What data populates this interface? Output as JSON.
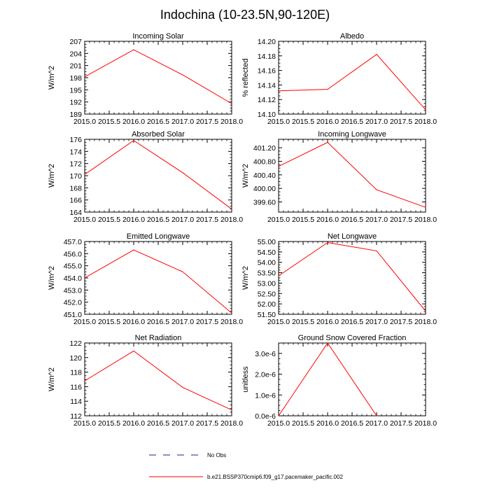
{
  "title": "Indochina (10-23.5N,90-120E)",
  "line_color": "#ff0000",
  "obs_color": "#1e1e8c",
  "legend": {
    "obs_label": "No Obs",
    "model_label": "b.e21.BSSP370cmip6.f09_g17.pacemaker_pacific.002"
  },
  "chart_data": [
    {
      "type": "line",
      "title": "Incoming Solar",
      "ylabel": "W/m^2",
      "x": [
        2016.0,
        2017.0,
        2018.0
      ],
      "y": [
        204.9,
        198.7,
        191.6
      ],
      "xlim": [
        2015.0,
        2018.0
      ],
      "ylim": [
        189,
        207
      ],
      "xticks": [
        2015.0,
        2015.5,
        2016.0,
        2016.5,
        2017.0,
        2017.5,
        2018.0
      ],
      "xtick_labels": [
        "2015.0",
        "2015.5",
        "2016.0",
        "2016.5",
        "2017.0",
        "2017.5",
        "2018.0"
      ],
      "yticks": [
        189,
        192,
        195,
        198,
        201,
        204,
        207
      ],
      "ytick_labels": [
        "189",
        "192",
        "195",
        "198",
        "201",
        "204",
        "207"
      ],
      "y_start_at_axis": 198.2
    },
    {
      "type": "line",
      "title": "Albedo",
      "ylabel": "% reflected",
      "x": [
        2016.0,
        2017.0,
        2018.0
      ],
      "y": [
        14.134,
        14.182,
        14.106
      ],
      "xlim": [
        2015.0,
        2018.0
      ],
      "ylim": [
        14.1,
        14.2
      ],
      "xticks": [
        2015.0,
        2015.5,
        2016.0,
        2016.5,
        2017.0,
        2017.5,
        2018.0
      ],
      "xtick_labels": [
        "2015.0",
        "2015.5",
        "2016.0",
        "2016.5",
        "2017.0",
        "2017.5",
        "2018.0"
      ],
      "yticks": [
        14.1,
        14.12,
        14.14,
        14.16,
        14.18,
        14.2
      ],
      "ytick_labels": [
        "14.10",
        "14.12",
        "14.14",
        "14.16",
        "14.18",
        "14.20"
      ],
      "y_start_at_axis": 14.132
    },
    {
      "type": "line",
      "title": "Absorbed Solar",
      "ylabel": "W/m^2",
      "x": [
        2016.0,
        2017.0,
        2018.0
      ],
      "y": [
        175.8,
        170.5,
        164.5
      ],
      "xlim": [
        2015.0,
        2018.0
      ],
      "ylim": [
        164,
        176
      ],
      "xticks": [
        2015.0,
        2015.5,
        2016.0,
        2016.5,
        2017.0,
        2017.5,
        2018.0
      ],
      "xtick_labels": [
        "2015.0",
        "2015.5",
        "2016.0",
        "2016.5",
        "2017.0",
        "2017.5",
        "2018.0"
      ],
      "yticks": [
        164,
        166,
        168,
        170,
        172,
        174,
        176
      ],
      "ytick_labels": [
        "164",
        "166",
        "168",
        "170",
        "172",
        "174",
        "176"
      ],
      "y_start_at_axis": 170.2
    },
    {
      "type": "line",
      "title": "Incoming Longwave",
      "ylabel": "W/m^2",
      "x": [
        2016.0,
        2017.0,
        2018.0
      ],
      "y": [
        401.36,
        399.96,
        399.44
      ],
      "xlim": [
        2015.0,
        2018.0
      ],
      "ylim": [
        399.3,
        401.45
      ],
      "xticks": [
        2015.0,
        2015.5,
        2016.0,
        2016.5,
        2017.0,
        2017.5,
        2018.0
      ],
      "xtick_labels": [
        "2015.0",
        "2015.5",
        "2016.0",
        "2016.5",
        "2017.0",
        "2017.5",
        "2018.0"
      ],
      "yticks": [
        399.6,
        400.0,
        400.4,
        400.8,
        401.2
      ],
      "ytick_labels": [
        "399.60",
        "400.00",
        "400.40",
        "400.80",
        "401.20"
      ],
      "y_start_at_axis": 400.65
    },
    {
      "type": "line",
      "title": "Emitted Longwave",
      "ylabel": "W/m^2",
      "x": [
        2016.0,
        2017.0,
        2018.0
      ],
      "y": [
        456.3,
        454.5,
        451.1
      ],
      "xlim": [
        2015.0,
        2018.0
      ],
      "ylim": [
        451.0,
        457.0
      ],
      "xticks": [
        2015.0,
        2015.5,
        2016.0,
        2016.5,
        2017.0,
        2017.5,
        2018.0
      ],
      "xtick_labels": [
        "2015.0",
        "2015.5",
        "2016.0",
        "2016.5",
        "2017.0",
        "2017.5",
        "2018.0"
      ],
      "yticks": [
        451.0,
        452.0,
        453.0,
        454.0,
        455.0,
        456.0,
        457.0
      ],
      "ytick_labels": [
        "451.0",
        "452.0",
        "453.0",
        "454.0",
        "455.0",
        "456.0",
        "457.0"
      ],
      "y_start_at_axis": 454.0
    },
    {
      "type": "line",
      "title": "Net Longwave",
      "ylabel": "W/m^2",
      "x": [
        2016.0,
        2017.0,
        2018.0
      ],
      "y": [
        54.95,
        54.55,
        51.65
      ],
      "xlim": [
        2015.0,
        2018.0
      ],
      "ylim": [
        51.5,
        55.0
      ],
      "xticks": [
        2015.0,
        2015.5,
        2016.0,
        2016.5,
        2017.0,
        2017.5,
        2018.0
      ],
      "xtick_labels": [
        "2015.0",
        "2015.5",
        "2016.0",
        "2016.5",
        "2017.0",
        "2017.5",
        "2018.0"
      ],
      "yticks": [
        51.5,
        52.0,
        52.5,
        53.0,
        53.5,
        54.0,
        54.5,
        55.0
      ],
      "ytick_labels": [
        "51.50",
        "52.00",
        "52.50",
        "53.00",
        "53.50",
        "54.00",
        "54.50",
        "55.00"
      ],
      "y_start_at_axis": 53.35
    },
    {
      "type": "line",
      "title": "Net Radiation",
      "ylabel": "W/m^2",
      "x": [
        2016.0,
        2017.0,
        2018.0
      ],
      "y": [
        120.9,
        115.9,
        112.8
      ],
      "xlim": [
        2015.0,
        2018.0
      ],
      "ylim": [
        112,
        122
      ],
      "xticks": [
        2015.0,
        2015.5,
        2016.0,
        2016.5,
        2017.0,
        2017.5,
        2018.0
      ],
      "xtick_labels": [
        "2015.0",
        "2015.5",
        "2016.0",
        "2016.5",
        "2017.0",
        "2017.5",
        "2018.0"
      ],
      "yticks": [
        112,
        114,
        116,
        118,
        120,
        122
      ],
      "ytick_labels": [
        "112",
        "114",
        "116",
        "118",
        "120",
        "122"
      ],
      "y_start_at_axis": 116.8
    },
    {
      "type": "line",
      "title": "Ground Snow Covered Fraction",
      "ylabel": "unitless",
      "x": [
        2016.0,
        2017.0
      ],
      "y": [
        3.5e-06,
        0.0
      ],
      "xlim": [
        2015.0,
        2018.0
      ],
      "ylim": [
        0,
        3.5e-06
      ],
      "xticks": [
        2015.0,
        2015.5,
        2016.0,
        2016.5,
        2017.0,
        2017.5,
        2018.0
      ],
      "xtick_labels": [
        "2015.0",
        "2015.5",
        "2016.0",
        "2016.5",
        "2017.0",
        "2017.5",
        "2018.0"
      ],
      "yticks": [
        0,
        1e-06,
        2e-06,
        3e-06
      ],
      "ytick_labels": [
        "0.0e-6",
        "1.0e-6",
        "2.0e-6",
        "3.0e-6"
      ],
      "y_start_at_axis": 0.0
    }
  ]
}
